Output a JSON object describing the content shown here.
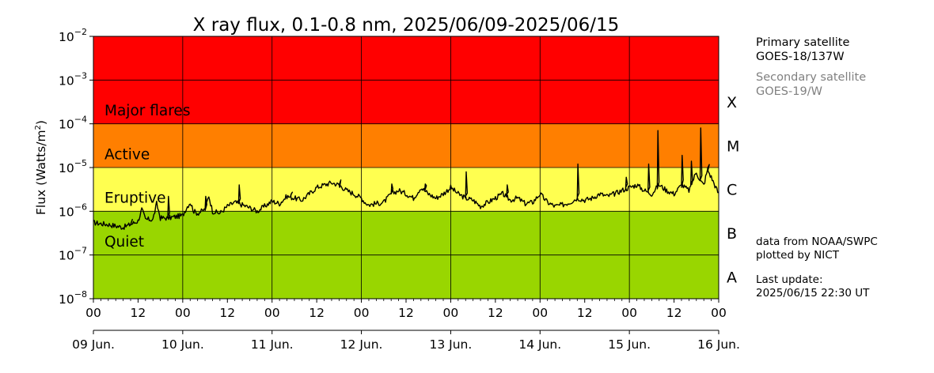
{
  "chart_data": {
    "type": "line",
    "title": "X ray flux, 0.1-0.8 nm, 2025/06/09-2025/06/15",
    "ylabel_prefix": "Flux (Watts/m",
    "ylabel_sup": "2",
    "ylabel_suffix": ")",
    "y_scale": "log",
    "ylim": [
      1e-08,
      0.01
    ],
    "y_ticks": [
      {
        "base": "10",
        "exp": "−8",
        "value": 1e-08
      },
      {
        "base": "10",
        "exp": "−7",
        "value": 1e-07
      },
      {
        "base": "10",
        "exp": "−6",
        "value": 1e-06
      },
      {
        "base": "10",
        "exp": "−5",
        "value": 1e-05
      },
      {
        "base": "10",
        "exp": "−4",
        "value": 0.0001
      },
      {
        "base": "10",
        "exp": "−3",
        "value": 0.001
      },
      {
        "base": "10",
        "exp": "−2",
        "value": 0.01
      }
    ],
    "xlim": [
      "2025/06/09 00:00",
      "2025/06/16 00:00"
    ],
    "x_hour_ticks": [
      "00",
      "12",
      "00",
      "12",
      "00",
      "12",
      "00",
      "12",
      "00",
      "12",
      "00",
      "12",
      "00",
      "12",
      "00"
    ],
    "x_day_labels": [
      "09 Jun.",
      "10 Jun.",
      "11 Jun.",
      "12 Jun.",
      "13 Jun.",
      "14 Jun.",
      "15 Jun.",
      "16 Jun."
    ],
    "grid": true,
    "bands": [
      {
        "label": "Major flares",
        "from": 0.0001,
        "to": 0.01,
        "color": "#ff0000"
      },
      {
        "label": "Active",
        "from": 1e-05,
        "to": 0.0001,
        "color": "#ff7f00"
      },
      {
        "label": "Eruptive",
        "from": 1e-06,
        "to": 1e-05,
        "color": "#ffff50"
      },
      {
        "label": "Quiet",
        "from": 1e-08,
        "to": 1e-06,
        "color": "#99d600"
      }
    ],
    "classes": [
      {
        "label": "X",
        "value": 0.000316
      },
      {
        "label": "M",
        "value": 3.16e-05
      },
      {
        "label": "C",
        "value": 3.16e-06
      },
      {
        "label": "B",
        "value": 3.16e-07
      },
      {
        "label": "A",
        "value": 3.16e-08
      }
    ],
    "series": [
      {
        "color": "#000000",
        "x_unit": "hours since 2025/06/09 00:00",
        "x": [
          0,
          2,
          4,
          6,
          8,
          10,
          12,
          13,
          14,
          16,
          17,
          18,
          20,
          22,
          24,
          25,
          26,
          27,
          28,
          30,
          31,
          32,
          34,
          36,
          38,
          40,
          42,
          44,
          46,
          48,
          50,
          52,
          54,
          56,
          58,
          60,
          62,
          64,
          66,
          68,
          70,
          72,
          73,
          74,
          76,
          78,
          80,
          82,
          84,
          86,
          88,
          90,
          92,
          94,
          96,
          98,
          100,
          102,
          104,
          106,
          108,
          110,
          112,
          114,
          116,
          118,
          120,
          122,
          124,
          126,
          128,
          130,
          132,
          134,
          136,
          138,
          140,
          142,
          144,
          146,
          148,
          150,
          152,
          154,
          156,
          158,
          160,
          162,
          163,
          164,
          165,
          166,
          168
        ],
        "values": [
          5.5e-07,
          5.2e-07,
          5e-07,
          4.6e-07,
          4.3e-07,
          5e-07,
          6e-07,
          1.1e-06,
          6.5e-07,
          6.5e-07,
          1.5e-06,
          7e-07,
          7e-07,
          7.5e-07,
          8e-07,
          1.2e-06,
          1.6e-06,
          1e-06,
          9e-07,
          1.1e-06,
          2.3e-06,
          1e-06,
          9e-07,
          1.3e-06,
          1.6e-06,
          1.4e-06,
          1.2e-06,
          1e-06,
          1.3e-06,
          1.7e-06,
          1.5e-06,
          2.2e-06,
          2e-06,
          1.8e-06,
          2.5e-06,
          3.5e-06,
          4e-06,
          4.5e-06,
          4e-06,
          3e-06,
          2.5e-06,
          2e-06,
          1.6e-06,
          1.4e-06,
          1.5e-06,
          1.6e-06,
          2.5e-06,
          3e-06,
          2.5e-06,
          2e-06,
          3.5e-06,
          2.5e-06,
          2e-06,
          2.5e-06,
          3.5e-06,
          2.5e-06,
          2e-06,
          1.8e-06,
          1.3e-06,
          1.6e-06,
          2e-06,
          2.5e-06,
          1.8e-06,
          2e-06,
          1.5e-06,
          1.6e-06,
          2.5e-06,
          1.6e-06,
          1.3e-06,
          1.4e-06,
          1.6e-06,
          2e-06,
          1.8e-06,
          2e-06,
          2.5e-06,
          2.2e-06,
          2.5e-06,
          3e-06,
          3.5e-06,
          4e-06,
          3e-06,
          2.5e-06,
          4e-06,
          3e-06,
          2.5e-06,
          4e-06,
          3e-06,
          8e-06,
          5e-06,
          4e-06,
          9e-06,
          6e-06,
          2.5e-06
        ],
        "spikes": [
          {
            "x": 10,
            "value": 5.5e-07
          },
          {
            "x": 20,
            "value": 2.2e-06
          },
          {
            "x": 30,
            "value": 2.2e-06
          },
          {
            "x": 39,
            "value": 4e-06
          },
          {
            "x": 53,
            "value": 2.5e-06
          },
          {
            "x": 66,
            "value": 3.5e-06
          },
          {
            "x": 80,
            "value": 4.2e-06
          },
          {
            "x": 89,
            "value": 4.2e-06
          },
          {
            "x": 100,
            "value": 8e-06
          },
          {
            "x": 111,
            "value": 4e-06
          },
          {
            "x": 130,
            "value": 1.2e-05
          },
          {
            "x": 143,
            "value": 6e-06
          },
          {
            "x": 149,
            "value": 1.2e-05
          },
          {
            "x": 151.5,
            "value": 7e-05
          },
          {
            "x": 158,
            "value": 1.9e-05
          },
          {
            "x": 160.5,
            "value": 1.4e-05
          },
          {
            "x": 163,
            "value": 8e-05
          },
          {
            "x": 165,
            "value": 9e-06
          }
        ]
      }
    ]
  },
  "satellites": {
    "primary_label": "Primary satellite",
    "primary_name": "GOES-18/137W",
    "secondary_label": "Secondary satellite",
    "secondary_name": "GOES-19/W"
  },
  "credits": {
    "line1": "data from NOAA/SWPC",
    "line2": "plotted by NICT"
  },
  "update": {
    "label": "Last update:",
    "value": "2025/06/15 22:30 UT"
  }
}
